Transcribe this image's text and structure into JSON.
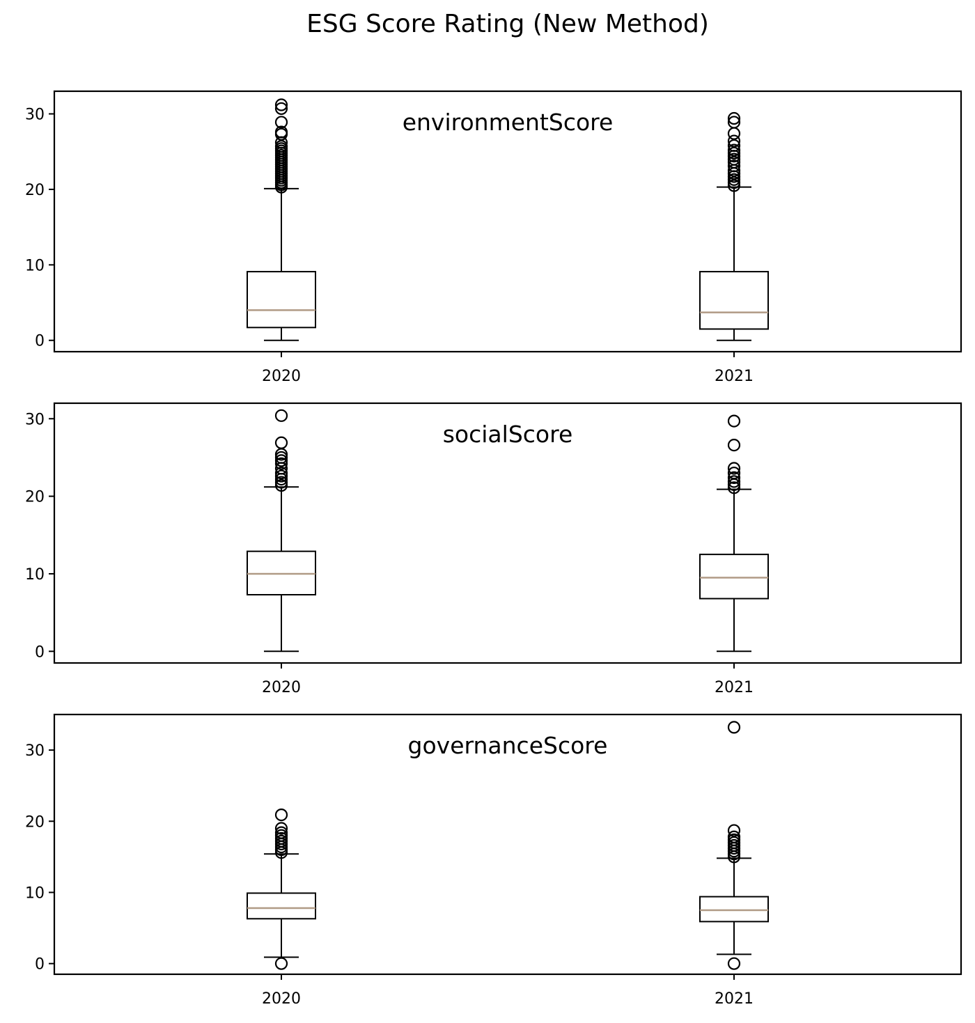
{
  "figure": {
    "title": "ESG Score Rating (New Method)"
  },
  "style": {
    "median_color": "#b09a85",
    "box_color": "#000000",
    "background": "#ffffff"
  },
  "chart_data": [
    {
      "type": "box",
      "title": "environmentScore",
      "categories": [
        "2020",
        "2021"
      ],
      "ylim": [
        -1.5,
        33
      ],
      "yticks": [
        0,
        10,
        20,
        30
      ],
      "grid": false,
      "boxes": [
        {
          "label": "2020",
          "whislo": 0,
          "q1": 1.7,
          "med": 4.0,
          "q3": 9.1,
          "whishi": 20.1,
          "fliers": [
            20.3,
            20.6,
            20.9,
            21.2,
            21.5,
            21.8,
            22.1,
            22.4,
            22.7,
            23.0,
            23.3,
            23.6,
            23.9,
            24.2,
            24.5,
            24.8,
            25.1,
            25.4,
            25.7,
            26.2,
            27.3,
            27.6,
            28.9,
            30.7,
            31.2
          ]
        },
        {
          "label": "2021",
          "whislo": 0,
          "q1": 1.5,
          "med": 3.7,
          "q3": 9.1,
          "whishi": 20.3,
          "fliers": [
            20.5,
            20.9,
            21.3,
            21.7,
            22.1,
            22.5,
            23.1,
            23.6,
            24.0,
            24.4,
            24.8,
            25.2,
            25.8,
            26.4,
            27.4,
            28.9,
            29.4
          ]
        }
      ]
    },
    {
      "type": "box",
      "title": "socialScore",
      "categories": [
        "2020",
        "2021"
      ],
      "ylim": [
        -1.5,
        32
      ],
      "yticks": [
        0,
        10,
        20,
        30
      ],
      "grid": false,
      "boxes": [
        {
          "label": "2020",
          "whislo": 0,
          "q1": 7.3,
          "med": 10.0,
          "q3": 12.9,
          "whishi": 21.2,
          "fliers": [
            21.4,
            21.8,
            22.2,
            22.6,
            23.0,
            23.6,
            24.2,
            24.6,
            25.0,
            25.4,
            26.9,
            30.4
          ]
        },
        {
          "label": "2021",
          "whislo": 0,
          "q1": 6.8,
          "med": 9.5,
          "q3": 12.5,
          "whishi": 20.9,
          "fliers": [
            21.1,
            21.5,
            21.9,
            22.4,
            23.0,
            23.6,
            26.6,
            29.7
          ]
        }
      ]
    },
    {
      "type": "box",
      "title": "governanceScore",
      "categories": [
        "2020",
        "2021"
      ],
      "ylim": [
        -1.5,
        35
      ],
      "yticks": [
        0,
        10,
        20,
        30
      ],
      "grid": false,
      "boxes": [
        {
          "label": "2020",
          "whislo": 0.9,
          "q1": 6.3,
          "med": 7.8,
          "q3": 9.9,
          "whishi": 15.4,
          "fliers": [
            0.0,
            15.6,
            16.0,
            16.4,
            16.8,
            17.2,
            17.6,
            18.0,
            18.4,
            19.0,
            20.9
          ]
        },
        {
          "label": "2021",
          "whislo": 1.3,
          "q1": 5.9,
          "med": 7.5,
          "q3": 9.4,
          "whishi": 14.8,
          "fliers": [
            0.0,
            15.0,
            15.4,
            15.8,
            16.2,
            16.6,
            17.0,
            17.4,
            17.8,
            18.7,
            33.2
          ]
        }
      ]
    }
  ]
}
